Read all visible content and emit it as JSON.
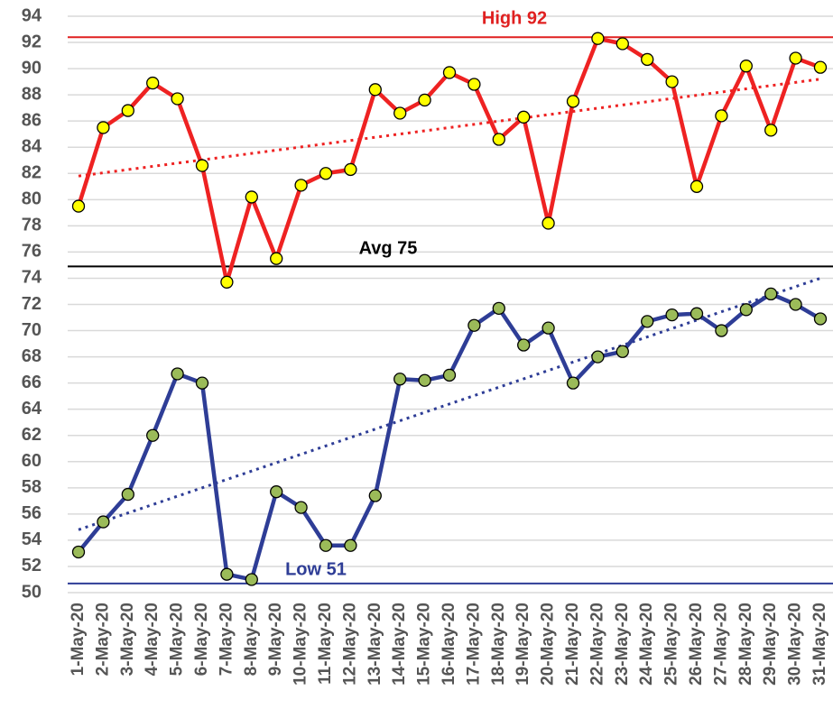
{
  "chart_data": {
    "type": "line",
    "categories": [
      "1-May-20",
      "2-May-20",
      "3-May-20",
      "4-May-20",
      "5-May-20",
      "6-May-20",
      "7-May-20",
      "8-May-20",
      "9-May-20",
      "10-May-20",
      "11-May-20",
      "12-May-20",
      "13-May-20",
      "14-May-20",
      "15-May-20",
      "16-May-20",
      "17-May-20",
      "18-May-20",
      "19-May-20",
      "20-May-20",
      "21-May-20",
      "22-May-20",
      "23-May-20",
      "24-May-20",
      "25-May-20",
      "26-May-20",
      "27-May-20",
      "28-May-20",
      "29-May-20",
      "30-May-20",
      "31-May-20"
    ],
    "series": [
      {
        "color": "#ee2222",
        "marker_color": "#ffff00",
        "values": [
          79.5,
          85.5,
          86.8,
          88.9,
          87.7,
          82.6,
          73.7,
          80.2,
          75.5,
          81.1,
          82.0,
          82.3,
          88.4,
          86.6,
          87.6,
          89.7,
          88.8,
          84.6,
          86.3,
          78.2,
          87.5,
          92.3,
          91.9,
          90.7,
          89.0,
          81.0,
          86.4,
          90.2,
          85.3,
          90.8,
          90.1
        ],
        "trend": [
          81.8,
          89.2
        ]
      },
      {
        "color": "#2e3d96",
        "marker_color": "#9bbb59",
        "values": [
          53.1,
          55.4,
          57.5,
          62.0,
          66.7,
          66.0,
          51.4,
          51.0,
          57.7,
          56.5,
          53.6,
          53.6,
          57.4,
          66.3,
          66.2,
          66.6,
          70.4,
          71.7,
          68.9,
          70.2,
          66.0,
          68.0,
          68.4,
          70.7,
          71.2,
          71.3,
          70.0,
          71.6,
          72.8,
          72.0,
          70.9
        ],
        "trend": [
          54.8,
          74.0
        ]
      }
    ],
    "reference_lines": [
      {
        "label": "High 92",
        "value": 92.4,
        "color": "#e02020"
      },
      {
        "label": "Avg 75",
        "value": 74.9,
        "color": "#000000"
      },
      {
        "label": "Low 51",
        "value": 50.7,
        "color": "#2e3d96"
      }
    ],
    "ylim": [
      50,
      94
    ],
    "yticks": [
      50,
      52,
      54,
      56,
      58,
      60,
      62,
      64,
      66,
      68,
      70,
      72,
      74,
      76,
      78,
      80,
      82,
      84,
      86,
      88,
      90,
      92,
      94
    ],
    "grid": true
  }
}
